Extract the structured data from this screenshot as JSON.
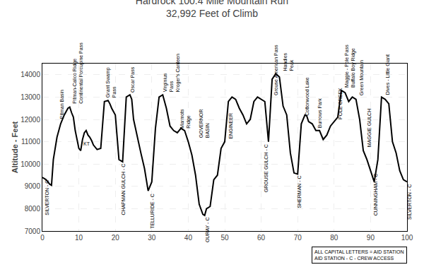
{
  "chart_data": {
    "type": "line",
    "title": "Hardrock 100.4 Mile Mountain Run",
    "subtitle": "32,992 Feet of Climb",
    "ylabel": "Altitude - Feet",
    "x": [
      0,
      1,
      2,
      2.5,
      3,
      4,
      5,
      6,
      7,
      7.5,
      8,
      8.5,
      9,
      10,
      10.5,
      11,
      11.5,
      12,
      12.5,
      13,
      13.5,
      14,
      15,
      16,
      17,
      18,
      18.5,
      19,
      20,
      21,
      22,
      23,
      24,
      24.5,
      25,
      26,
      27,
      28,
      29,
      30,
      31,
      32,
      33,
      34,
      35,
      36,
      37,
      38,
      39,
      40,
      41,
      42,
      43,
      44,
      44.5,
      45,
      46,
      47,
      48,
      49,
      50,
      51,
      52,
      53,
      54,
      55,
      56,
      57,
      58,
      59,
      60,
      61,
      62,
      63,
      64,
      65,
      66,
      67,
      68,
      69,
      70,
      71,
      72,
      72.5,
      73,
      74,
      75,
      76,
      77,
      78,
      79,
      80,
      81,
      82,
      83,
      84,
      85,
      86,
      87,
      88,
      89,
      90,
      91,
      92,
      93,
      94,
      95,
      96,
      97,
      98,
      99,
      100
    ],
    "values": [
      9400,
      9300,
      9100,
      9050,
      10200,
      11200,
      11800,
      12200,
      12500,
      12550,
      12300,
      12100,
      11500,
      10700,
      10600,
      11100,
      11400,
      11500,
      11300,
      11200,
      11050,
      10850,
      10650,
      10700,
      12800,
      12850,
      12700,
      12500,
      12200,
      10200,
      10100,
      13000,
      13100,
      12900,
      12000,
      11200,
      10500,
      9800,
      8800,
      9200,
      11600,
      13000,
      13100,
      12500,
      11700,
      11500,
      11400,
      11600,
      11500,
      11000,
      10400,
      9500,
      8200,
      7750,
      7700,
      8000,
      8100,
      9300,
      9500,
      10700,
      11000,
      12800,
      13000,
      12900,
      12500,
      12200,
      11800,
      12000,
      12800,
      13000,
      12900,
      12800,
      11000,
      13800,
      14050,
      13900,
      12600,
      12200,
      10500,
      9600,
      9550,
      11800,
      12200,
      12150,
      11900,
      11800,
      11500,
      11500,
      11100,
      11300,
      11700,
      11900,
      12100,
      13300,
      13200,
      12800,
      13000,
      12900,
      12000,
      10600,
      10200,
      9700,
      9200,
      10200,
      13000,
      12900,
      12700,
      11000,
      10500,
      9700,
      9300,
      9200
    ],
    "color": "#000000",
    "xlim": [
      0,
      100
    ],
    "ylim": [
      7000,
      14500
    ],
    "xticks": [
      0,
      10,
      20,
      30,
      40,
      50,
      60,
      70,
      80,
      90,
      100
    ],
    "yticks": [
      7000,
      8000,
      9000,
      10000,
      11000,
      12000,
      13000,
      14000
    ],
    "grid": true,
    "annotations": [
      {
        "x": 4.2,
        "y": 11950,
        "text": "Pitman Basin",
        "position": "above"
      },
      {
        "x": 7.8,
        "y": 12650,
        "text": "Pitman-Calico Ridge\nContinental Porcupine Pass",
        "position": "above"
      },
      {
        "x": 17.0,
        "y": 12920,
        "text": "Grant Swamp\nPass",
        "position": "above"
      },
      {
        "x": 23.5,
        "y": 13150,
        "text": "Oscar Pass",
        "position": "above"
      },
      {
        "x": 32.5,
        "y": 13150,
        "text": "Virginius\nPass\nKroger's Canteen",
        "position": "above"
      },
      {
        "x": 37.2,
        "y": 11550,
        "text": "Marmots\nRidge",
        "position": "above"
      },
      {
        "x": 42.5,
        "y": 11100,
        "text": "GOVERNOR\nBASIN",
        "position": "above"
      },
      {
        "x": 50.5,
        "y": 11050,
        "text": "ENGINEER",
        "position": "above"
      },
      {
        "x": 63.0,
        "y": 13000,
        "text": "Grouse American Pass",
        "position": "above"
      },
      {
        "x": 65.5,
        "y": 14100,
        "text": "Handies\nPeak",
        "position": "above"
      },
      {
        "x": 71.5,
        "y": 12100,
        "text": "Cottonwood Lake",
        "position": "above"
      },
      {
        "x": 75.0,
        "y": 11550,
        "text": "Burrows Park",
        "position": "above"
      },
      {
        "x": 80.5,
        "y": 11950,
        "text": "POLE CREEK",
        "position": "above"
      },
      {
        "x": 82.5,
        "y": 13350,
        "text": "Maggie - Pole Pass\nBuffalo Boy Ridge",
        "position": "above"
      },
      {
        "x": 86.5,
        "y": 13000,
        "text": "Green Mountain",
        "position": "above"
      },
      {
        "x": 88.5,
        "y": 10700,
        "text": "MAGGIE GULCH",
        "position": "above"
      },
      {
        "x": 93.5,
        "y": 13050,
        "text": "Dives - Little Giant",
        "position": "above"
      },
      {
        "x": 10.8,
        "y": 10720,
        "text": "KT",
        "position": "right"
      },
      {
        "x": 0.3,
        "y": 9350,
        "text": "SILVERTON - C",
        "position": "below"
      },
      {
        "x": 21.2,
        "y": 10100,
        "text": "CHAPMAN GULCH - C",
        "position": "below"
      },
      {
        "x": 29.2,
        "y": 8750,
        "text": "TELLURIDE - C",
        "position": "below"
      },
      {
        "x": 44.2,
        "y": 7680,
        "text": "OURAY - C",
        "position": "below"
      },
      {
        "x": 60.2,
        "y": 10950,
        "text": "GROUSE GULCH - C",
        "position": "below"
      },
      {
        "x": 69.2,
        "y": 9530,
        "text": "SHERMAN - C",
        "position": "below"
      },
      {
        "x": 90.2,
        "y": 9650,
        "text": "CUNNINGHAM - C",
        "position": "below"
      },
      {
        "x": 99.5,
        "y": 9150,
        "text": "SILVERTON - C",
        "position": "below"
      },
      {
        "text": "ALL CAPITAL LETTERS = AID STATION\nAID STATION - C - CREW ACCESS",
        "position": "box"
      }
    ]
  }
}
